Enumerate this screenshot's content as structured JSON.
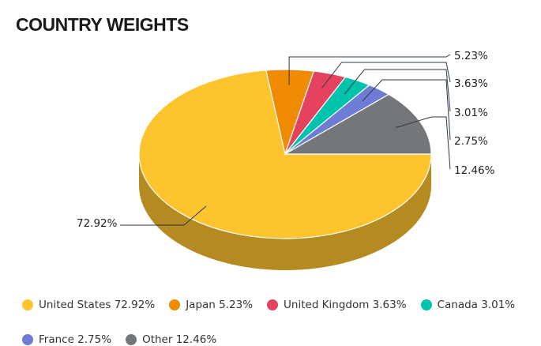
{
  "chart_data": {
    "type": "pie",
    "title": "COUNTRY WEIGHTS",
    "three_d": true,
    "start_angle_deg": 0,
    "direction": "clockwise",
    "slices": [
      {
        "name": "United States",
        "value": 72.92,
        "label": "72.92%",
        "legend": "United States 72.92%",
        "color": "#fec42d",
        "side_color": "#b48a21"
      },
      {
        "name": "Japan",
        "value": 5.23,
        "label": "5.23%",
        "legend": "Japan 5.23%",
        "color": "#f08a00",
        "side_color": "#a86000"
      },
      {
        "name": "United Kingdom",
        "value": 3.63,
        "label": "3.63%",
        "legend": "United Kingdom 3.63%",
        "color": "#e5425f",
        "side_color": "#a02e42"
      },
      {
        "name": "Canada",
        "value": 3.01,
        "label": "3.01%",
        "legend": "Canada 3.01%",
        "color": "#00c3ae",
        "side_color": "#00887a"
      },
      {
        "name": "France",
        "value": 2.75,
        "label": "2.75%",
        "legend": "France 2.75%",
        "color": "#6e7cd6",
        "side_color": "#4d5796"
      },
      {
        "name": "Other",
        "value": 12.46,
        "label": "12.46%",
        "legend": "Other 12.46%",
        "color": "#737779",
        "side_color": "#505354"
      }
    ],
    "legend_placement": "bottom"
  }
}
